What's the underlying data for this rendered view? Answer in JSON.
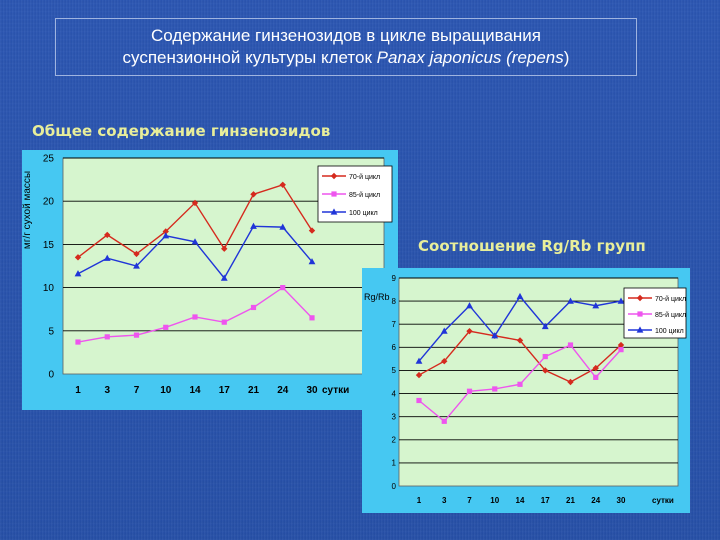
{
  "slide": {
    "title_line1": "Содержание гинзенозидов в цикле выращивания",
    "title_line2_prefix": "суспензионной культуры клеток ",
    "title_line2_italic": "Panax japonicus (repens",
    "title_line2_suffix": ")",
    "left_label": "Общее содержание гинзенозидов",
    "right_label": "Соотношение Rg/Rb групп"
  },
  "colors": {
    "outer_bg": "#46c8f2",
    "plot_bg": "#d6f5ce",
    "series_70": "#d52a1e",
    "series_85": "#ee55ee",
    "series_100": "#2035d8"
  },
  "chart_data": [
    {
      "type": "line",
      "title": "Общее содержание гинзенозидов",
      "ylabel": "мг/г сухой массы",
      "xlabel": "сутки",
      "categories": [
        "1",
        "3",
        "7",
        "10",
        "14",
        "17",
        "21",
        "24",
        "30"
      ],
      "ylim": [
        0,
        25
      ],
      "yticks": [
        "0",
        "5",
        "10",
        "15",
        "20",
        "25"
      ],
      "grid": true,
      "legend_position": "top-right",
      "series": [
        {
          "name": "70-й цикл",
          "marker": "diamond",
          "values": [
            13.5,
            16.1,
            13.9,
            16.5,
            19.8,
            14.5,
            20.8,
            21.9,
            16.6
          ]
        },
        {
          "name": "85-й цикл",
          "marker": "square",
          "values": [
            3.7,
            4.3,
            4.5,
            5.4,
            6.6,
            6.0,
            7.7,
            10.0,
            6.5
          ]
        },
        {
          "name": "100 цикл",
          "marker": "triangle",
          "values": [
            11.6,
            13.4,
            12.5,
            16.0,
            15.3,
            11.1,
            17.1,
            17.0,
            13.0
          ]
        }
      ]
    },
    {
      "type": "line",
      "title": "Соотношение Rg/Rb групп",
      "ylabel": "Rg/Rb",
      "xlabel": "сутки",
      "categories": [
        "1",
        "3",
        "7",
        "10",
        "14",
        "17",
        "21",
        "24",
        "30"
      ],
      "ylim": [
        0,
        9
      ],
      "yticks": [
        "0",
        "1",
        "2",
        "3",
        "4",
        "5",
        "6",
        "7",
        "8",
        "9"
      ],
      "grid": true,
      "legend_position": "top-right",
      "series": [
        {
          "name": "70-й цикл",
          "marker": "diamond",
          "values": [
            4.8,
            5.4,
            6.7,
            6.5,
            6.3,
            5.0,
            4.5,
            5.1,
            6.1
          ]
        },
        {
          "name": "85-й цикл",
          "marker": "square",
          "values": [
            3.7,
            2.8,
            4.1,
            4.2,
            4.4,
            5.6,
            6.1,
            4.7,
            5.9
          ]
        },
        {
          "name": "100 цикл",
          "marker": "triangle",
          "values": [
            5.4,
            6.7,
            7.8,
            6.5,
            8.2,
            6.9,
            8.0,
            7.8,
            8.0
          ]
        }
      ]
    }
  ]
}
